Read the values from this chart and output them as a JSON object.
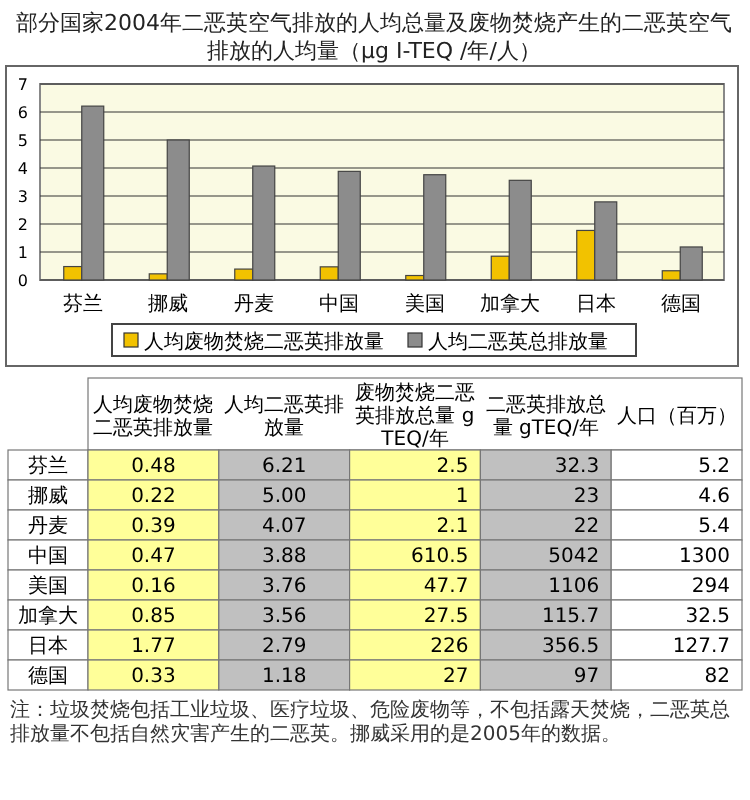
{
  "chart_data": [
    {
      "type": "bar",
      "title": "部分国家2004年二恶英空气排放的人均总量及废物焚烧产生的二恶英空气排放的人均量（µg I-TEQ /年/人）",
      "categories": [
        "芬兰",
        "挪威",
        "丹麦",
        "中国",
        "美国",
        "加拿大",
        "日本",
        "德国"
      ],
      "series": [
        {
          "name": "人均废物焚烧二恶英排放量",
          "color": "#f2c200",
          "values": [
            0.48,
            0.22,
            0.39,
            0.47,
            0.16,
            0.85,
            1.77,
            0.33
          ]
        },
        {
          "name": "人均二恶英总排放量",
          "color": "#8c8c8c",
          "values": [
            6.21,
            5.0,
            4.07,
            3.88,
            3.76,
            3.56,
            2.79,
            1.18
          ]
        }
      ],
      "ylim": [
        0,
        7
      ],
      "yticks": [
        0,
        1,
        2,
        3,
        4,
        5,
        6,
        7
      ],
      "grid": "y",
      "legend": "bottom",
      "annotations": [
        "注：垃圾焚烧包括工业垃圾、医疗垃圾、危险废物等，不包括露天焚烧，二恶英总排放量不包括自然灾害产生的二恶英。挪威采用的是2005年的数据。"
      ]
    },
    {
      "type": "other",
      "categories": [
        "芬兰",
        "挪威",
        "丹麦",
        "中国",
        "美国",
        "加拿大",
        "日本",
        "德国"
      ],
      "series": [
        {
          "name": "人均废物焚烧二恶英排放量",
          "values": [
            0.48,
            0.22,
            0.39,
            0.47,
            0.16,
            0.85,
            1.77,
            0.33
          ],
          "value_labels": [
            "0.48",
            "0.22",
            "0.39",
            "0.47",
            "0.16",
            "0.85",
            "1.77",
            "0.33"
          ]
        },
        {
          "name": "人均二恶英排放量",
          "values": [
            6.21,
            5.0,
            4.07,
            3.88,
            3.76,
            3.56,
            2.79,
            1.18
          ],
          "value_labels": [
            "6.21",
            "5.00",
            "4.07",
            "3.88",
            "3.76",
            "3.56",
            "2.79",
            "1.18"
          ]
        },
        {
          "name": "废物焚烧二恶英排放总量 gTEQ/年",
          "values": [
            2.5,
            1,
            2.1,
            610.5,
            47.7,
            27.5,
            226,
            27
          ],
          "value_labels": [
            "2.5",
            "1",
            "2.1",
            "610.5",
            "47.7",
            "27.5",
            "226",
            "27"
          ]
        },
        {
          "name": "二恶英排放总量 gTEQ/年",
          "values": [
            32.3,
            23,
            22,
            5042,
            1106,
            115.7,
            356.5,
            97
          ],
          "value_labels": [
            "32.3",
            "23",
            "22",
            "5042",
            "1106",
            "115.7",
            "356.5",
            "97"
          ]
        },
        {
          "name": "人口（百万）",
          "values": [
            5.2,
            4.6,
            5.4,
            1300,
            294,
            32.5,
            127.7,
            82
          ],
          "value_labels": [
            "5.2",
            "4.6",
            "5.4",
            "1300",
            "294",
            "32.5",
            "127.7",
            "82"
          ]
        }
      ]
    }
  ]
}
